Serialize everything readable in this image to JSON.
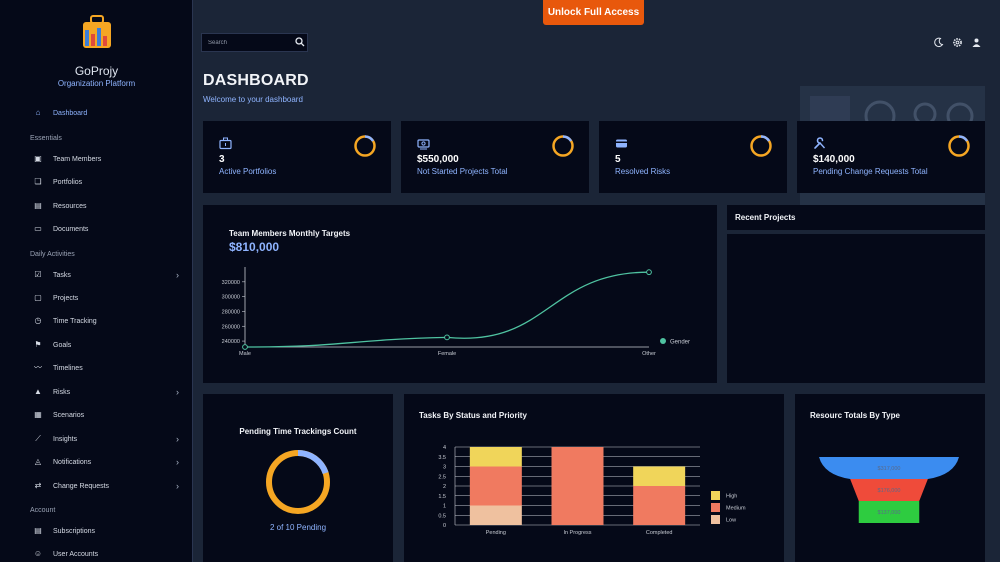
{
  "topbar": {
    "unlock_label": "Unlock Full Access",
    "search_placeholder": "Search"
  },
  "brand": {
    "name": "GoProjy",
    "subtitle": "Organization Platform"
  },
  "sidebar": {
    "dashboard": "Dashboard",
    "sections": {
      "essentials": "Essentials",
      "daily": "Daily Activities",
      "account": "Account"
    },
    "items": [
      {
        "label": "Team Members"
      },
      {
        "label": "Portfolios"
      },
      {
        "label": "Resources"
      },
      {
        "label": "Documents"
      },
      {
        "label": "Tasks"
      },
      {
        "label": "Projects"
      },
      {
        "label": "Time Tracking"
      },
      {
        "label": "Goals"
      },
      {
        "label": "Timelines"
      },
      {
        "label": "Risks"
      },
      {
        "label": "Scenarios"
      },
      {
        "label": "Insights"
      },
      {
        "label": "Notifications"
      },
      {
        "label": "Change Requests"
      },
      {
        "label": "Subscriptions"
      },
      {
        "label": "User Accounts"
      }
    ]
  },
  "page": {
    "title": "DASHBOARD",
    "subtitle": "Welcome to your dashboard"
  },
  "stats": [
    {
      "value": "3",
      "label": "Active Portfolios"
    },
    {
      "value": "$550,000",
      "label": "Not Started Projects Total"
    },
    {
      "value": "5",
      "label": "Resolved Risks"
    },
    {
      "value": "$140,000",
      "label": "Pending Change Requests Total"
    }
  ],
  "team_chart": {
    "title": "Team Members Monthly Targets",
    "total": "$810,000"
  },
  "recent_projects": {
    "title": "Recent Projects"
  },
  "pending_time": {
    "title": "Pending Time Trackings Count",
    "caption": "2 of 10 Pending"
  },
  "tasks_chart": {
    "title": "Tasks By Status and Priority"
  },
  "resource_chart": {
    "title": "Resourc Totals By Type"
  },
  "colors": {
    "accent": "#8fb4ff",
    "orange": "#e8580c",
    "ring": "#f5a623",
    "line": "#4fc3a1",
    "high": "#f0d55a",
    "medium": "#f07a60",
    "low": "#efc19f"
  },
  "chart_data": [
    {
      "type": "line",
      "title": "Team Members Monthly Targets",
      "categories": [
        "Male",
        "Female",
        "Other"
      ],
      "series": [
        {
          "name": "Gender",
          "values": [
            232000,
            245000,
            333000
          ]
        }
      ],
      "yticks": [
        240000,
        260000,
        280000,
        300000,
        320000
      ],
      "ylim": [
        232000,
        340000
      ]
    },
    {
      "type": "bar",
      "title": "Tasks By Status and Priority",
      "categories": [
        "Pending",
        "In Progress",
        "Completed"
      ],
      "series": [
        {
          "name": "Low",
          "values": [
            1,
            0,
            0
          ]
        },
        {
          "name": "Medium",
          "values": [
            2,
            4,
            2
          ]
        },
        {
          "name": "High",
          "values": [
            1,
            0,
            1
          ]
        }
      ],
      "yticks": [
        0,
        0.5,
        1,
        1.5,
        2,
        2.5,
        3,
        3.5,
        4
      ],
      "ylim": [
        0,
        4
      ]
    },
    {
      "type": "pie",
      "title": "Pending Time Trackings Count",
      "series": [
        {
          "name": "Pending",
          "values": [
            2
          ]
        },
        {
          "name": "Other",
          "values": [
            8
          ]
        }
      ]
    },
    {
      "type": "funnel",
      "title": "Resourc Totals By Type",
      "series": [
        {
          "label": "$317,000",
          "value": 317000,
          "color": "#3b8cf0"
        },
        {
          "label": "$176,000",
          "value": 176000,
          "color": "#ef4b3a"
        },
        {
          "label": "$137,000",
          "value": 137000,
          "color": "#2ecc40"
        }
      ]
    }
  ]
}
